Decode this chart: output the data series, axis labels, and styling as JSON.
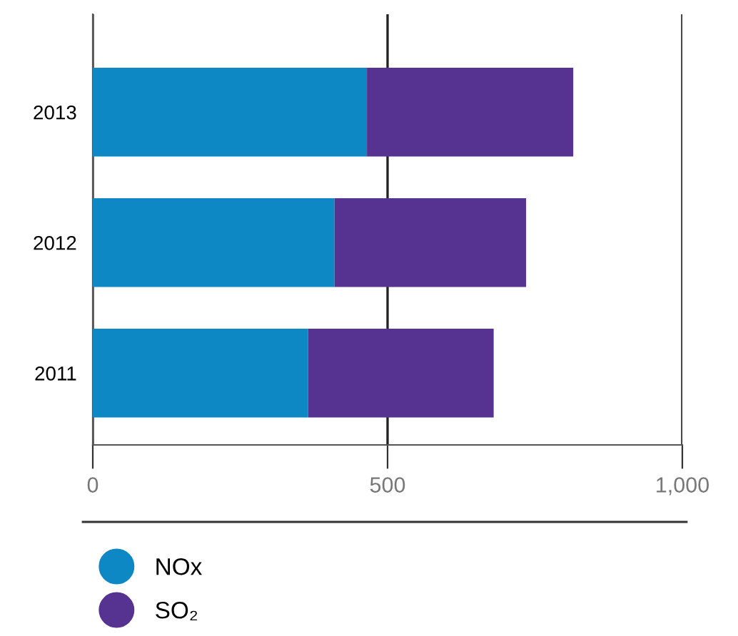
{
  "chart_data": {
    "type": "bar",
    "orientation": "horizontal",
    "stacked": true,
    "categories": [
      "2013",
      "2012",
      "2011"
    ],
    "series": [
      {
        "name": "NOx",
        "color": "#0e88c5",
        "values": [
          465,
          410,
          365
        ]
      },
      {
        "name": "SO₂",
        "color": "#573391",
        "values": [
          350,
          325,
          315
        ]
      }
    ],
    "xlim": [
      0,
      1000
    ],
    "xticks": [
      0,
      500,
      {
        "value": 1000,
        "label": "1,000"
      }
    ],
    "grid": "x",
    "legend": "bottom left"
  }
}
